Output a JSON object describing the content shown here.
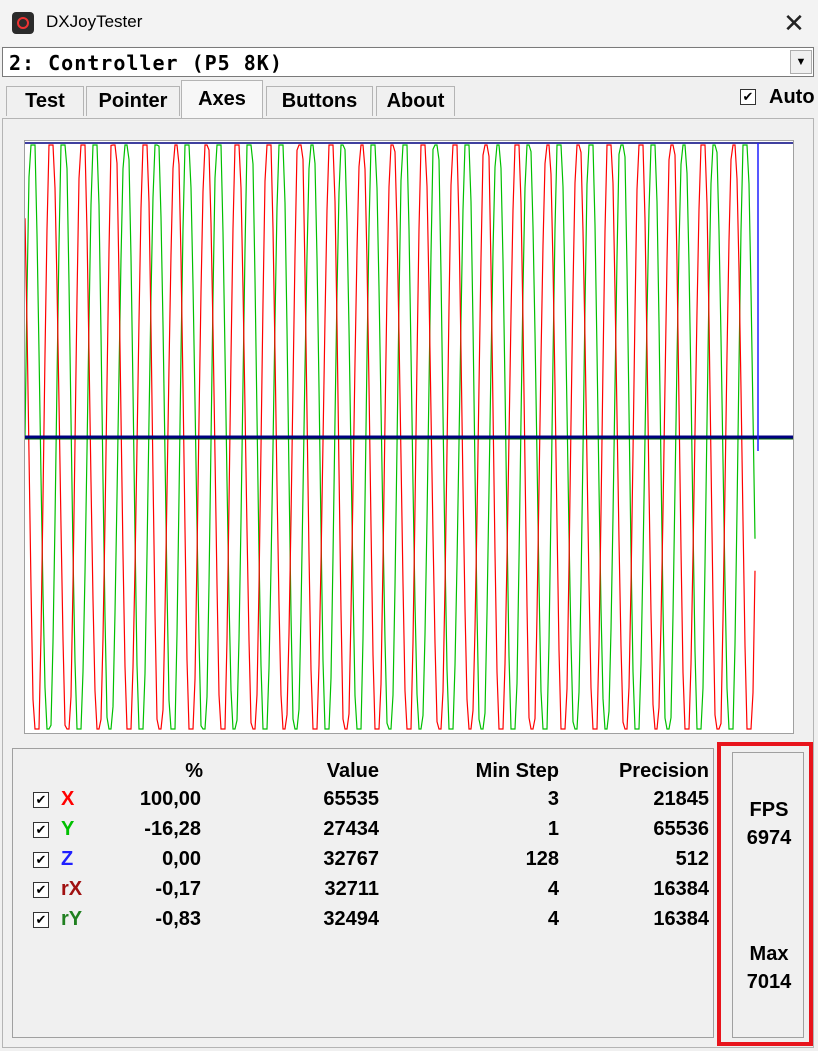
{
  "window": {
    "title": "DXJoyTester",
    "close_glyph": "✕",
    "icon": "joystick-app-icon"
  },
  "device": {
    "selected": "2: Controller (P5 8K)",
    "dropdown_glyph": "▼"
  },
  "tabs": [
    {
      "label": "Test",
      "active": false
    },
    {
      "label": "Pointer",
      "active": false
    },
    {
      "label": "Axes",
      "active": true
    },
    {
      "label": "Buttons",
      "active": false
    },
    {
      "label": "About",
      "active": false
    }
  ],
  "auto": {
    "label": "Auto",
    "checked": true,
    "glyph": "✔"
  },
  "graph": {
    "colors": {
      "x": "#ff0000",
      "y": "#00c000",
      "z": "#000080",
      "rx": "#8b0000",
      "ry": "#006400"
    }
  },
  "stats": {
    "headers": {
      "pct": "%",
      "value": "Value",
      "min_step": "Min Step",
      "precision": "Precision"
    },
    "rows": [
      {
        "name": "X",
        "color": "#ff0000",
        "pct": "100,00",
        "value": "65535",
        "min_step": "3",
        "precision": "21845"
      },
      {
        "name": "Y",
        "color": "#00c000",
        "pct": "-16,28",
        "value": "27434",
        "min_step": "1",
        "precision": "65536"
      },
      {
        "name": "Z",
        "color": "#2020ff",
        "pct": "0,00",
        "value": "32767",
        "min_step": "128",
        "precision": "512"
      },
      {
        "name": "rX",
        "color": "#a01010",
        "pct": "-0,17",
        "value": "32711",
        "min_step": "4",
        "precision": "16384"
      },
      {
        "name": "rY",
        "color": "#208020",
        "pct": "-0,83",
        "value": "32494",
        "min_step": "4",
        "precision": "16384"
      }
    ]
  },
  "fps": {
    "fps_label": "FPS",
    "fps_value": "6974",
    "max_label": "Max",
    "max_value": "7014",
    "highlight_color": "#e8141c"
  }
}
